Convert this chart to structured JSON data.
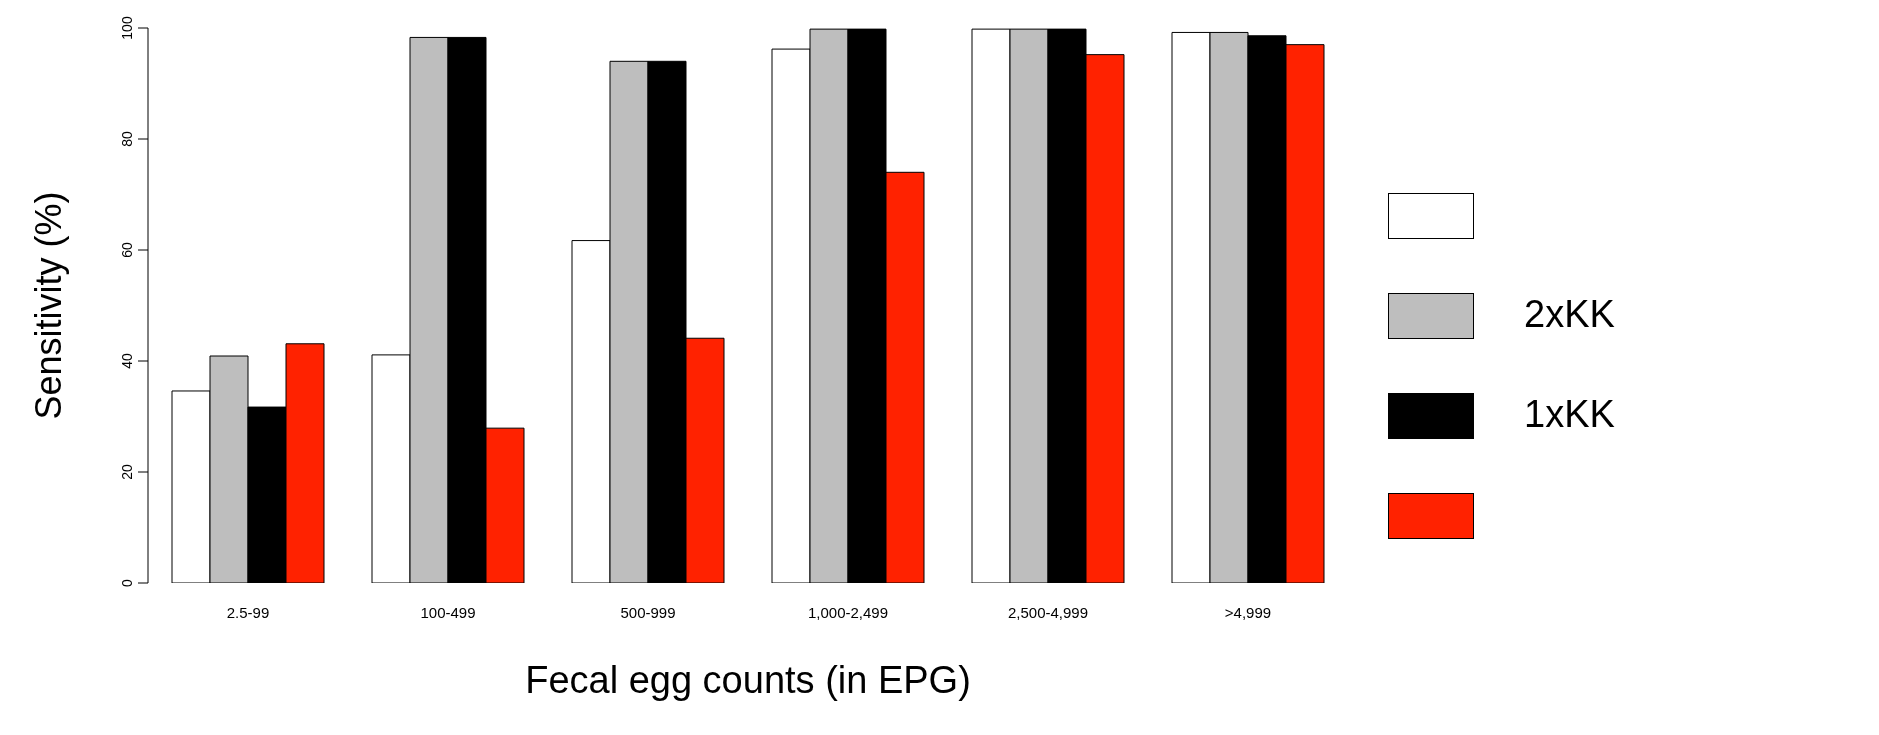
{
  "chart_data": {
    "type": "bar",
    "xlabel": "Fecal egg counts (in EPG)",
    "ylabel": "Sensitivity (%)",
    "categories": [
      "2.5-99",
      "100-499",
      "500-999",
      "1,000-2,499",
      "2,500-4,999",
      ">4,999"
    ],
    "series": [
      {
        "color": "#ffffff",
        "values": [
          34.6,
          41.1,
          61.7,
          96.2,
          99.8,
          99.2
        ]
      },
      {
        "name": "2xKK",
        "color": "#bebebe",
        "values": [
          40.9,
          98.3,
          94.0,
          99.8,
          99.8,
          99.2
        ]
      },
      {
        "name": "1xKK",
        "color": "#000000",
        "values": [
          31.7,
          98.3,
          94.0,
          99.8,
          99.8,
          98.6
        ]
      },
      {
        "color": "#ff2200",
        "values": [
          43.1,
          27.9,
          44.1,
          74.0,
          95.2,
          97.0
        ]
      }
    ],
    "ylim": [
      0,
      100
    ],
    "yticks": [
      0,
      20,
      40,
      60,
      80,
      100
    ],
    "grid": false,
    "legend": "right"
  }
}
